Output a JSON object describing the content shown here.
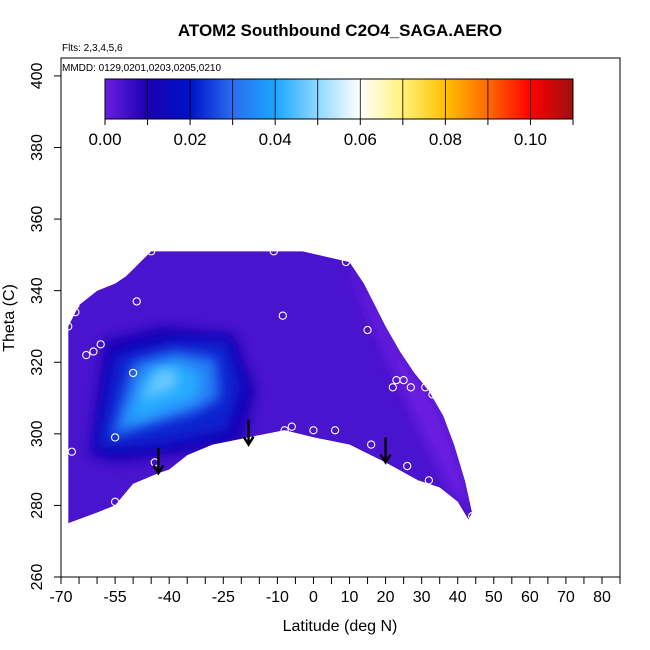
{
  "chart_data": {
    "type": "heatmap",
    "title": "ATOM2 Southbound C2O4_SAGA.AERO",
    "subtitle_flights": "Flts: 2,3,4,5,6",
    "subtitle_dates": "MMDD: 0129,0201,0203,0205,0210",
    "xlabel": "Latitude (deg N)",
    "ylabel": "Theta (C)",
    "xlim": [
      -70,
      85
    ],
    "ylim": [
      260,
      405
    ],
    "x_ticks": [
      {
        "value": -70,
        "label": "-70"
      },
      {
        "value": -55,
        "label": "-55"
      },
      {
        "value": -40,
        "label": "-40"
      },
      {
        "value": -25,
        "label": "-25"
      },
      {
        "value": -10,
        "label": "-10"
      },
      {
        "value": 0,
        "label": "0"
      },
      {
        "value": 10,
        "label": "10"
      },
      {
        "value": 20,
        "label": "20"
      },
      {
        "value": 30,
        "label": "30"
      },
      {
        "value": 40,
        "label": "40"
      },
      {
        "value": 50,
        "label": "50"
      },
      {
        "value": 60,
        "label": "60"
      },
      {
        "value": 70,
        "label": "70"
      },
      {
        "value": 80,
        "label": "80"
      }
    ],
    "x_minor_ticks": [
      -65,
      -60,
      -50,
      -45,
      -35,
      -30,
      -20,
      -15,
      -5,
      5,
      15,
      25,
      35,
      45,
      55,
      65,
      75,
      85
    ],
    "y_ticks": [
      {
        "value": 260,
        "label": "260"
      },
      {
        "value": 280,
        "label": "280"
      },
      {
        "value": 300,
        "label": "300"
      },
      {
        "value": 320,
        "label": "320"
      },
      {
        "value": 340,
        "label": "340"
      },
      {
        "value": 360,
        "label": "360"
      },
      {
        "value": 380,
        "label": "380"
      },
      {
        "value": 400,
        "label": "400"
      }
    ],
    "colorbar": {
      "range": [
        0,
        0.11
      ],
      "labels": [
        {
          "value": 0.0,
          "label": "0.00"
        },
        {
          "value": 0.02,
          "label": "0.02"
        },
        {
          "value": 0.04,
          "label": "0.04"
        },
        {
          "value": 0.06,
          "label": "0.06"
        },
        {
          "value": 0.08,
          "label": "0.08"
        },
        {
          "value": 0.1,
          "label": "0.10"
        }
      ],
      "color_stops": [
        {
          "value": 0.0,
          "color": "#6a1fe0"
        },
        {
          "value": 0.01,
          "color": "#1a00b0"
        },
        {
          "value": 0.02,
          "color": "#0012c8"
        },
        {
          "value": 0.03,
          "color": "#2a6cf0"
        },
        {
          "value": 0.04,
          "color": "#1aa6ff"
        },
        {
          "value": 0.05,
          "color": "#8fd8ff"
        },
        {
          "value": 0.06,
          "color": "#ffffff"
        },
        {
          "value": 0.07,
          "color": "#fff27a"
        },
        {
          "value": 0.08,
          "color": "#ffc000"
        },
        {
          "value": 0.09,
          "color": "#ff6a00"
        },
        {
          "value": 0.1,
          "color": "#ff0000"
        },
        {
          "value": 0.11,
          "color": "#9c1010"
        }
      ]
    },
    "field": {
      "background_value": 0.004,
      "outline": [
        [
          -68,
          275
        ],
        [
          -68,
          330
        ],
        [
          -65,
          336
        ],
        [
          -60,
          340
        ],
        [
          -55,
          342
        ],
        [
          -52,
          344
        ],
        [
          -50,
          346
        ],
        [
          -48,
          348
        ],
        [
          -45,
          351
        ],
        [
          -28,
          351
        ],
        [
          -10,
          351
        ],
        [
          -3,
          351
        ],
        [
          10,
          348
        ],
        [
          14,
          342
        ],
        [
          17,
          336
        ],
        [
          20,
          330
        ],
        [
          24,
          323
        ],
        [
          28,
          317
        ],
        [
          32,
          312
        ],
        [
          36,
          305
        ],
        [
          39,
          297
        ],
        [
          42,
          287
        ],
        [
          44,
          278
        ],
        [
          43,
          276
        ],
        [
          40,
          281
        ],
        [
          35,
          285
        ],
        [
          29,
          287
        ],
        [
          20,
          292
        ],
        [
          10,
          297
        ],
        [
          0,
          299
        ],
        [
          -8,
          301
        ],
        [
          -18,
          299
        ],
        [
          -28,
          297
        ],
        [
          -35,
          294
        ],
        [
          -40,
          290
        ],
        [
          -43,
          289
        ],
        [
          -50,
          286
        ],
        [
          -55,
          280
        ],
        [
          -60,
          278
        ],
        [
          -68,
          275
        ]
      ],
      "features": [
        {
          "value": 0.012,
          "polygon": [
            [
              -62,
              294
            ],
            [
              -58,
              326
            ],
            [
              -42,
              330
            ],
            [
              -22,
              328
            ],
            [
              -16,
              312
            ],
            [
              -20,
              297
            ],
            [
              -40,
              294
            ],
            [
              -55,
              292
            ]
          ]
        },
        {
          "value": 0.022,
          "polygon": [
            [
              -60,
              296
            ],
            [
              -55,
              322
            ],
            [
              -40,
              326
            ],
            [
              -24,
              326
            ],
            [
              -20,
              313
            ],
            [
              -24,
              301
            ],
            [
              -42,
              297
            ],
            [
              -56,
              296
            ]
          ]
        },
        {
          "value": 0.033,
          "polygon": [
            [
              -56,
              299
            ],
            [
              -50,
              320
            ],
            [
              -38,
              323
            ],
            [
              -27,
              321
            ],
            [
              -26,
              310
            ],
            [
              -33,
              306
            ],
            [
              -50,
              301
            ]
          ]
        },
        {
          "value": 0.041,
          "polygon": [
            [
              -52,
              303
            ],
            [
              -46,
              318
            ],
            [
              -38,
              320
            ],
            [
              -31,
              317
            ],
            [
              -32,
              310
            ],
            [
              -45,
              305
            ]
          ]
        },
        {
          "value": 0.047,
          "polygon": [
            [
              -48,
              310
            ],
            [
              -43,
              318
            ],
            [
              -38,
              318
            ],
            [
              -38,
              313
            ],
            [
              -44,
              311
            ]
          ]
        },
        {
          "value": 0.0,
          "polygon": [
            [
              10,
              348
            ],
            [
              14,
              342
            ],
            [
              17,
              336
            ],
            [
              20,
              330
            ],
            [
              24,
              323
            ],
            [
              28,
              317
            ],
            [
              32,
              312
            ],
            [
              36,
              305
            ],
            [
              39,
              297
            ],
            [
              42,
              287
            ],
            [
              44,
              278
            ],
            [
              38,
              284
            ],
            [
              30,
              300
            ],
            [
              22,
              318
            ],
            [
              15,
              334
            ]
          ]
        }
      ]
    },
    "observations": [
      [
        -68,
        330
      ],
      [
        -66,
        336
      ],
      [
        -66,
        334
      ],
      [
        -63,
        322
      ],
      [
        -61,
        323
      ],
      [
        -59,
        325
      ],
      [
        -45,
        351
      ],
      [
        -49,
        337
      ],
      [
        -50,
        317
      ],
      [
        -55,
        299
      ],
      [
        -55,
        281
      ],
      [
        -67,
        295
      ],
      [
        -44,
        292
      ],
      [
        -11,
        351
      ],
      [
        -8.5,
        333
      ],
      [
        -8,
        301
      ],
      [
        -6,
        302
      ],
      [
        0,
        301
      ],
      [
        6,
        301
      ],
      [
        9,
        348
      ],
      [
        15,
        329
      ],
      [
        16,
        297
      ],
      [
        22,
        313
      ],
      [
        23,
        315
      ],
      [
        25,
        315
      ],
      [
        26,
        291
      ],
      [
        27,
        313
      ],
      [
        31,
        313
      ],
      [
        32,
        287
      ],
      [
        33,
        311
      ],
      [
        44,
        277
      ]
    ],
    "arrows": [
      {
        "x": -43,
        "y_top": 296,
        "y_bottom": 289
      },
      {
        "x": -18,
        "y_top": 304,
        "y_bottom": 297
      },
      {
        "x": 20,
        "y_top": 299,
        "y_bottom": 292
      }
    ]
  }
}
